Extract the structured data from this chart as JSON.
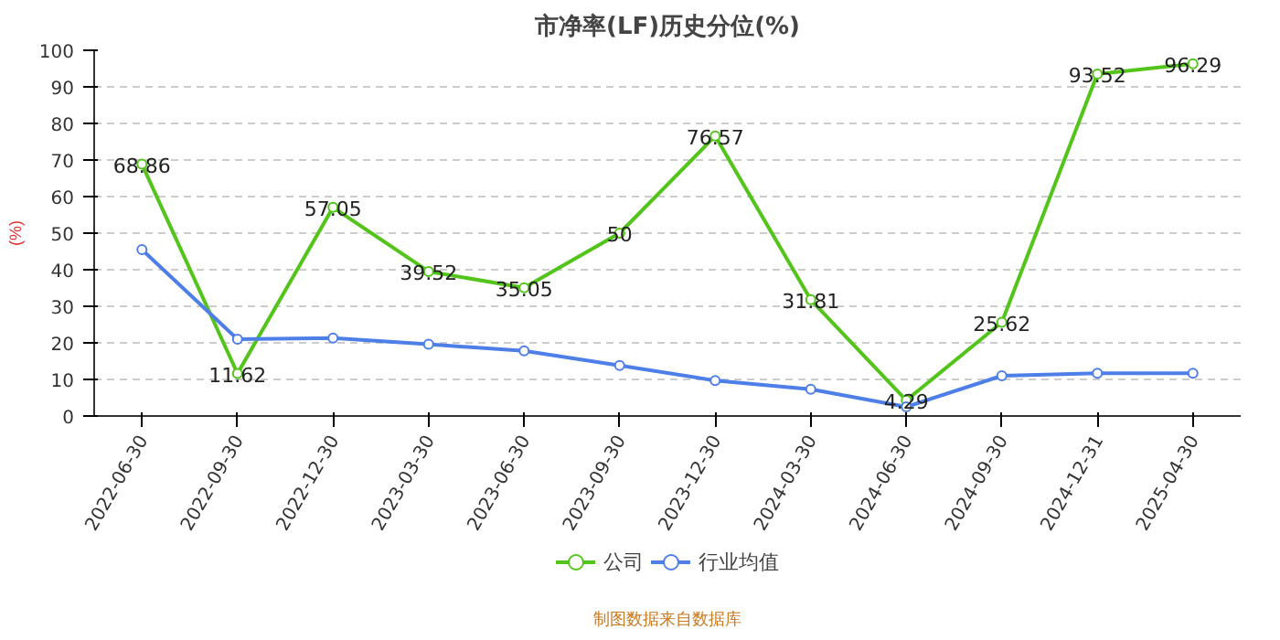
{
  "chart_data": {
    "type": "line",
    "title": "市净率(LF)历史分位(%)",
    "ylabel": "(%)",
    "categories": [
      "2022-06-30",
      "2022-09-30",
      "2022-12-30",
      "2023-03-30",
      "2023-06-30",
      "2023-09-30",
      "2023-12-30",
      "2024-03-30",
      "2024-06-30",
      "2024-09-30",
      "2024-12-31",
      "2025-04-30"
    ],
    "series": [
      {
        "name": "公司",
        "color": "#52c41a",
        "values": [
          68.86,
          11.62,
          57.05,
          39.52,
          35.05,
          50,
          76.57,
          31.81,
          4.29,
          25.62,
          93.52,
          96.29
        ],
        "data_labels": true
      },
      {
        "name": "行业均值",
        "color": "#4e7fe8",
        "values": [
          45.5,
          21,
          21.3,
          19.6,
          17.8,
          13.8,
          9.7,
          7.3,
          2.5,
          11,
          11.7,
          11.7
        ]
      }
    ],
    "ylim": [
      0,
      100
    ],
    "yticks": [
      0,
      10,
      20,
      30,
      40,
      50,
      60,
      70,
      80,
      90,
      100
    ],
    "grid": "y",
    "legend": "bottom",
    "marker": "circle",
    "line_style": "solid",
    "annotations": [
      "制图数据来自数据库"
    ]
  }
}
